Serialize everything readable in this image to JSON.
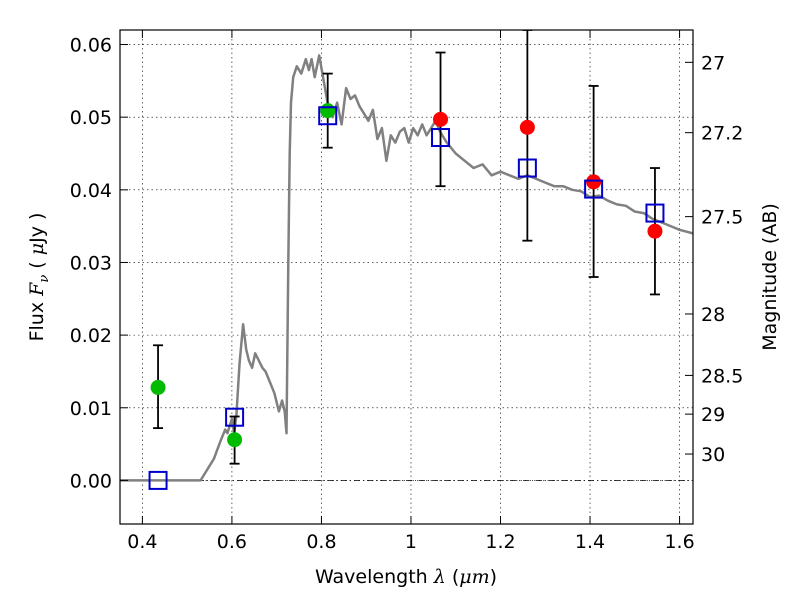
{
  "chart_data": {
    "type": "scatter",
    "xlabel": {
      "text": "Wavelength",
      "sym": "λ",
      "open": " (",
      "unit": "μm",
      "close": ")"
    },
    "ylabel": {
      "text": "Flux",
      "sym": "F",
      "sub": "ν",
      "open": "  ( ",
      "unit_a": "μ",
      "unit_b": "Jy )"
    },
    "y2label": "Magnitude (AB)",
    "xlim": [
      0.35,
      1.63
    ],
    "ylim": [
      -0.006,
      0.062
    ],
    "x_ticks": [
      {
        "v": 0.4,
        "label": "0.4"
      },
      {
        "v": 0.6,
        "label": "0.6"
      },
      {
        "v": 0.8,
        "label": "0.8"
      },
      {
        "v": 1.0,
        "label": "1"
      },
      {
        "v": 1.2,
        "label": "1.2"
      },
      {
        "v": 1.4,
        "label": "1.4"
      },
      {
        "v": 1.6,
        "label": "1.6"
      }
    ],
    "y_ticks": [
      {
        "v": 0.0,
        "label": "0.00"
      },
      {
        "v": 0.01,
        "label": "0.01"
      },
      {
        "v": 0.02,
        "label": "0.02"
      },
      {
        "v": 0.03,
        "label": "0.03"
      },
      {
        "v": 0.04,
        "label": "0.04"
      },
      {
        "v": 0.05,
        "label": "0.05"
      },
      {
        "v": 0.06,
        "label": "0.06"
      }
    ],
    "y2_ticks": [
      {
        "mag": 27,
        "label": "27"
      },
      {
        "mag": 27.2,
        "label": "27.2"
      },
      {
        "mag": 27.5,
        "label": "27.5"
      },
      {
        "mag": 28,
        "label": "28"
      },
      {
        "mag": 28.5,
        "label": "28.5"
      },
      {
        "mag": 29,
        "label": "29"
      },
      {
        "mag": 30,
        "label": "30"
      }
    ],
    "grid": true,
    "colors": {
      "green": "#00bb00",
      "red": "#ff0000",
      "blue": "#0000cc",
      "sed": "#808080"
    },
    "sed_curve": {
      "x": [
        0.35,
        0.53,
        0.545,
        0.56,
        0.575,
        0.585,
        0.59,
        0.595,
        0.6,
        0.605,
        0.61,
        0.617,
        0.625,
        0.632,
        0.638,
        0.645,
        0.652,
        0.66,
        0.668,
        0.675,
        0.685,
        0.695,
        0.705,
        0.712,
        0.718,
        0.722,
        0.726,
        0.729,
        0.732,
        0.737,
        0.745,
        0.755,
        0.765,
        0.772,
        0.778,
        0.785,
        0.795,
        0.805,
        0.815,
        0.825,
        0.835,
        0.845,
        0.855,
        0.865,
        0.875,
        0.885,
        0.895,
        0.905,
        0.915,
        0.925,
        0.935,
        0.945,
        0.955,
        0.965,
        0.975,
        0.985,
        0.995,
        1.005,
        1.015,
        1.025,
        1.035,
        1.045,
        1.055,
        1.065,
        1.08,
        1.1,
        1.12,
        1.14,
        1.16,
        1.18,
        1.2,
        1.22,
        1.24,
        1.26,
        1.28,
        1.3,
        1.32,
        1.34,
        1.36,
        1.38,
        1.4,
        1.42,
        1.44,
        1.46,
        1.48,
        1.5,
        1.52,
        1.54,
        1.56,
        1.58,
        1.6,
        1.63
      ],
      "y": [
        0.0,
        0.0,
        0.0015,
        0.003,
        0.0055,
        0.007,
        0.0065,
        0.0075,
        0.0085,
        0.0065,
        0.009,
        0.016,
        0.0215,
        0.018,
        0.0165,
        0.0155,
        0.0175,
        0.0165,
        0.0155,
        0.015,
        0.0135,
        0.012,
        0.0095,
        0.011,
        0.0095,
        0.0065,
        0.03,
        0.045,
        0.052,
        0.0555,
        0.057,
        0.056,
        0.058,
        0.0565,
        0.058,
        0.0555,
        0.0585,
        0.055,
        0.0515,
        0.05,
        0.052,
        0.049,
        0.054,
        0.0525,
        0.053,
        0.0515,
        0.0505,
        0.0495,
        0.051,
        0.047,
        0.0485,
        0.044,
        0.0475,
        0.0465,
        0.048,
        0.0485,
        0.0465,
        0.0485,
        0.0475,
        0.049,
        0.0475,
        0.0485,
        0.0495,
        0.048,
        0.0465,
        0.045,
        0.044,
        0.043,
        0.0435,
        0.042,
        0.0425,
        0.042,
        0.0415,
        0.042,
        0.0415,
        0.041,
        0.0405,
        0.0405,
        0.04,
        0.0398,
        0.039,
        0.0392,
        0.0385,
        0.038,
        0.0378,
        0.037,
        0.0368,
        0.036,
        0.0355,
        0.035,
        0.0345,
        0.034
      ]
    },
    "series": [
      {
        "points": [
          {
            "x": 0.435,
            "y": 0.0128,
            "err": [
              0.0072,
              0.0186
            ]
          },
          {
            "x": 0.606,
            "y": 0.0056,
            "err": [
              0.0023,
              0.0088
            ]
          },
          {
            "x": 0.814,
            "y": 0.0509,
            "err": [
              0.0458,
              0.056
            ]
          }
        ]
      },
      {
        "points": [
          {
            "x": 1.066,
            "y": 0.0497,
            "err": [
              0.0405,
              0.0589
            ]
          },
          {
            "x": 1.26,
            "y": 0.0486,
            "err": [
              0.033,
              0.062
            ]
          },
          {
            "x": 1.408,
            "y": 0.0411,
            "err": [
              0.028,
              0.0543
            ]
          },
          {
            "x": 1.545,
            "y": 0.0343,
            "err": [
              0.0256,
              0.043
            ]
          }
        ]
      },
      {
        "points": [
          {
            "x": 0.435,
            "y": 0.0
          },
          {
            "x": 0.606,
            "y": 0.0087
          },
          {
            "x": 0.814,
            "y": 0.0502
          },
          {
            "x": 1.066,
            "y": 0.0472
          },
          {
            "x": 1.26,
            "y": 0.043
          },
          {
            "x": 1.408,
            "y": 0.0401
          },
          {
            "x": 1.545,
            "y": 0.0368
          }
        ]
      }
    ]
  }
}
